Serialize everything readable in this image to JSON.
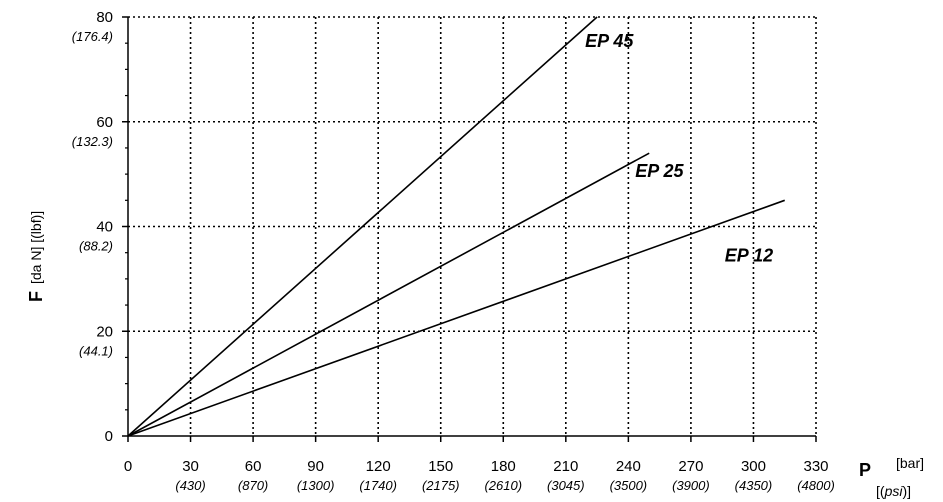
{
  "chart_data": {
    "type": "line",
    "x_ticks": [
      "0",
      "30",
      "60",
      "90",
      "120",
      "150",
      "180",
      "210",
      "240",
      "270",
      "300",
      "330"
    ],
    "x_ticks_psi": [
      "",
      "(430)",
      "(870)",
      "(1300)",
      "(1740)",
      "(2175)",
      "(2610)",
      "(3045)",
      "(3500)",
      "(3900)",
      "(4350)",
      "(4800)"
    ],
    "y_ticks": [
      "0",
      "20",
      "40",
      "60",
      "80"
    ],
    "y_ticks_lbf": [
      "",
      "(44.1)",
      "(88.2)",
      "(132.3)",
      "(176.4)"
    ],
    "xlim": [
      0,
      330
    ],
    "ylim": [
      0,
      80
    ],
    "grid": true,
    "x_label": {
      "symbol": "P",
      "unit": "[bar]",
      "unit_alt_open": "[(",
      "unit_alt": "psi",
      "unit_alt_close": ")]"
    },
    "y_label": {
      "symbol": "F",
      "unit": "[da N]  [(lbf)]"
    },
    "series": [
      {
        "name": "EP 45",
        "x": [
          0,
          225
        ],
        "y": [
          0,
          80
        ]
      },
      {
        "name": "EP 25",
        "x": [
          0,
          250
        ],
        "y": [
          0,
          54
        ]
      },
      {
        "name": "EP 12",
        "x": [
          0,
          315
        ],
        "y": [
          0,
          45
        ]
      }
    ]
  }
}
